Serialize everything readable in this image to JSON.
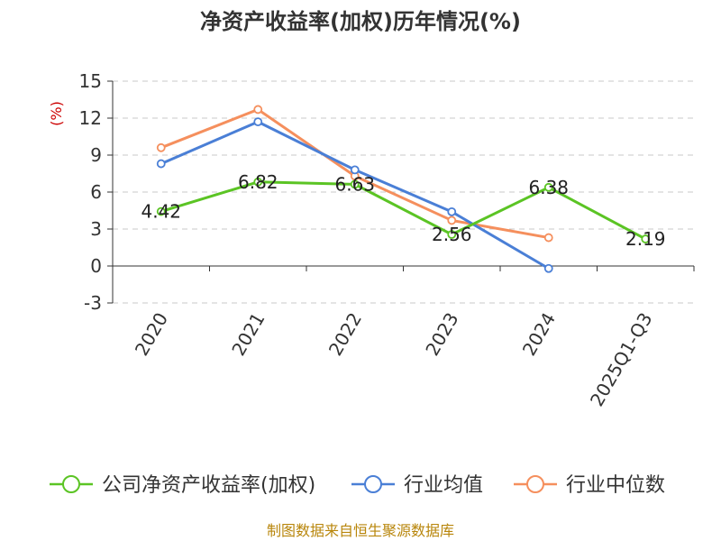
{
  "chart_data": {
    "type": "line",
    "title": "净资产收益率(加权)历年情况(%)",
    "ylabel": "(%)",
    "categories": [
      "2020",
      "2021",
      "2022",
      "2023",
      "2024",
      "2025Q1-Q3"
    ],
    "ylim": [
      -3,
      15
    ],
    "yticks": [
      -3,
      0,
      3,
      6,
      9,
      12,
      15
    ],
    "ytick_labels": [
      "-3",
      "0",
      "3",
      "6",
      "9",
      "12",
      "15"
    ],
    "grid": true,
    "series": [
      {
        "name": "公司净资产收益率(加权)",
        "color": "#5bc424",
        "values": [
          4.42,
          6.82,
          6.63,
          2.56,
          6.38,
          2.19
        ],
        "labels": [
          "4.42",
          "6.82",
          "6.63",
          "2.56",
          "6.38",
          "2.19"
        ]
      },
      {
        "name": "行业均值",
        "color": "#4a7fd6",
        "values": [
          8.3,
          11.7,
          7.8,
          4.4,
          -0.2,
          null
        ]
      },
      {
        "name": "行业中位数",
        "color": "#f58f5d",
        "values": [
          9.6,
          12.7,
          7.3,
          3.7,
          2.3,
          null
        ]
      }
    ],
    "source": "制图数据来自恒生聚源数据库"
  }
}
